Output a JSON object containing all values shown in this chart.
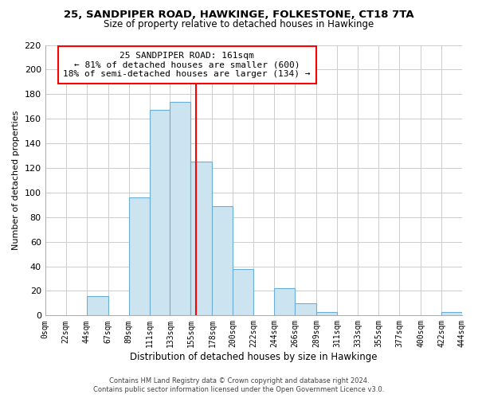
{
  "title": "25, SANDPIPER ROAD, HAWKINGE, FOLKESTONE, CT18 7TA",
  "subtitle": "Size of property relative to detached houses in Hawkinge",
  "xlabel": "Distribution of detached houses by size in Hawkinge",
  "ylabel": "Number of detached properties",
  "bin_edges": [
    0,
    22,
    44,
    67,
    89,
    111,
    133,
    155,
    178,
    200,
    222,
    244,
    266,
    289,
    311,
    333,
    355,
    377,
    400,
    422,
    444
  ],
  "bar_heights": [
    0,
    0,
    16,
    0,
    96,
    167,
    174,
    125,
    89,
    38,
    0,
    22,
    10,
    3,
    0,
    0,
    0,
    0,
    0,
    3
  ],
  "bar_color": "#cce4f0",
  "bar_edgecolor": "#6aaed6",
  "property_line_x": 161,
  "ylim": [
    0,
    220
  ],
  "yticks": [
    0,
    20,
    40,
    60,
    80,
    100,
    120,
    140,
    160,
    180,
    200,
    220
  ],
  "xtick_labels": [
    "0sqm",
    "22sqm",
    "44sqm",
    "67sqm",
    "89sqm",
    "111sqm",
    "133sqm",
    "155sqm",
    "178sqm",
    "200sqm",
    "222sqm",
    "244sqm",
    "266sqm",
    "289sqm",
    "311sqm",
    "333sqm",
    "355sqm",
    "377sqm",
    "400sqm",
    "422sqm",
    "444sqm"
  ],
  "annotation_line1": "25 SANDPIPER ROAD: 161sqm",
  "annotation_line2": "← 81% of detached houses are smaller (600)",
  "annotation_line3": "18% of semi-detached houses are larger (134) →",
  "footer_line1": "Contains HM Land Registry data © Crown copyright and database right 2024.",
  "footer_line2": "Contains public sector information licensed under the Open Government Licence v3.0.",
  "background_color": "#ffffff",
  "grid_color": "#cccccc"
}
